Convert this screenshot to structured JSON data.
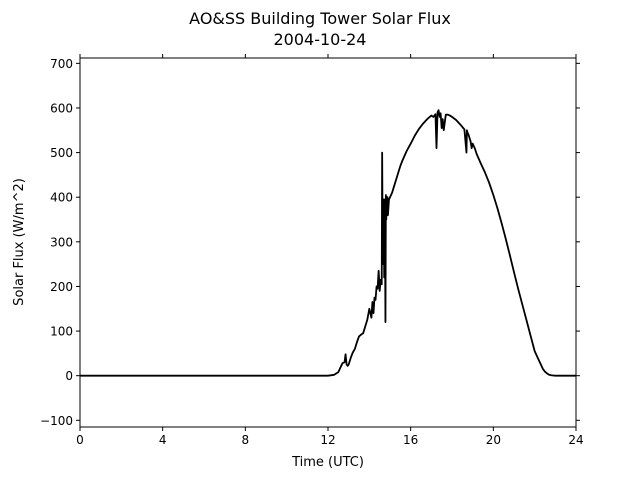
{
  "chart_data": {
    "type": "line",
    "title": "AO&SS Building Tower Solar Flux",
    "subtitle": "2004-10-24",
    "xlabel": "Time (UTC)",
    "ylabel": "Solar Flux (W/m^2)",
    "xlim": [
      0,
      24
    ],
    "ylim": [
      -115,
      712
    ],
    "xticks": [
      0,
      4,
      8,
      12,
      16,
      20,
      24
    ],
    "yticks": [
      -100,
      0,
      100,
      200,
      300,
      400,
      500,
      600,
      700
    ],
    "grid": false,
    "legend": "none",
    "line_color": "#000000",
    "series": [
      {
        "x": [
          0,
          12.0,
          12.3,
          12.5,
          12.6,
          12.7,
          12.8,
          12.85,
          12.9,
          12.95,
          13.0,
          13.1,
          13.2,
          13.3,
          13.4,
          13.5,
          13.6,
          13.7,
          13.8,
          13.9,
          14.0,
          14.1,
          14.15,
          14.2,
          14.25,
          14.3,
          14.35,
          14.4,
          14.45,
          14.5,
          14.55,
          14.6,
          14.62,
          14.65,
          14.7,
          14.72,
          14.75,
          14.78,
          14.8,
          14.82,
          14.85,
          14.88,
          14.9,
          14.95,
          15.0,
          15.05,
          15.1,
          15.2,
          15.3,
          15.4,
          15.5,
          15.6,
          15.8,
          16.0,
          16.2,
          16.4,
          16.6,
          16.8,
          17.0,
          17.1,
          17.2,
          17.25,
          17.3,
          17.35,
          17.4,
          17.45,
          17.5,
          17.55,
          17.6,
          17.7,
          17.8,
          17.9,
          18.0,
          18.2,
          18.4,
          18.6,
          18.7,
          18.72,
          18.75,
          18.8,
          18.9,
          18.95,
          19.0,
          19.05,
          19.1,
          19.2,
          19.4,
          19.6,
          19.8,
          20.0,
          20.2,
          20.4,
          20.6,
          20.8,
          21.0,
          21.2,
          21.4,
          21.6,
          21.8,
          22.0,
          22.2,
          22.3,
          22.4,
          22.5,
          22.6,
          22.7,
          22.8,
          22.9,
          23.0,
          23.2,
          24.0
        ],
        "values": [
          0,
          0,
          2,
          8,
          18,
          28,
          30,
          48,
          25,
          22,
          25,
          40,
          52,
          60,
          75,
          88,
          92,
          95,
          110,
          125,
          150,
          130,
          165,
          140,
          175,
          170,
          200,
          195,
          235,
          190,
          215,
          205,
          500,
          250,
          395,
          220,
          395,
          120,
          405,
          350,
          400,
          400,
          360,
          395,
          400,
          405,
          410,
          425,
          440,
          455,
          470,
          482,
          503,
          520,
          538,
          553,
          565,
          575,
          583,
          580,
          586,
          510,
          590,
          595,
          580,
          588,
          555,
          575,
          550,
          585,
          585,
          583,
          580,
          573,
          563,
          552,
          500,
          550,
          545,
          540,
          525,
          510,
          520,
          515,
          510,
          496,
          475,
          455,
          432,
          405,
          375,
          342,
          307,
          270,
          232,
          195,
          160,
          125,
          90,
          55,
          35,
          25,
          15,
          9,
          5,
          2,
          1,
          0.5,
          0,
          0,
          0
        ]
      }
    ]
  }
}
